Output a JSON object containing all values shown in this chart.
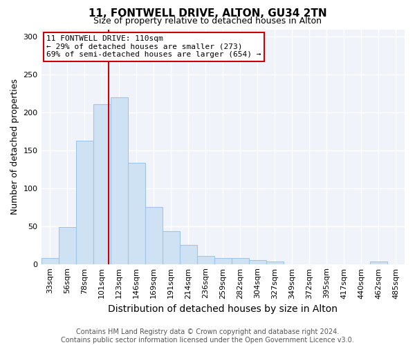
{
  "title1": "11, FONTWELL DRIVE, ALTON, GU34 2TN",
  "title2": "Size of property relative to detached houses in Alton",
  "xlabel": "Distribution of detached houses by size in Alton",
  "ylabel": "Number of detached properties",
  "footnote": "Contains HM Land Registry data © Crown copyright and database right 2024.\nContains public sector information licensed under the Open Government Licence v3.0.",
  "bar_color": "#cfe2f3",
  "bar_edge_color": "#9fc5e8",
  "background_color": "#ffffff",
  "plot_bg_color": "#f0f4fa",
  "grid_color": "#ffffff",
  "categories": [
    "33sqm",
    "56sqm",
    "78sqm",
    "101sqm",
    "123sqm",
    "146sqm",
    "169sqm",
    "191sqm",
    "214sqm",
    "236sqm",
    "259sqm",
    "282sqm",
    "304sqm",
    "327sqm",
    "349sqm",
    "372sqm",
    "395sqm",
    "417sqm",
    "440sqm",
    "462sqm",
    "485sqm"
  ],
  "values": [
    8,
    49,
    163,
    211,
    220,
    134,
    75,
    43,
    25,
    11,
    8,
    8,
    5,
    3,
    0,
    0,
    0,
    0,
    0,
    3,
    0
  ],
  "property_line_color": "#cc0000",
  "property_line_x": 3.41,
  "annotation_text": "11 FONTWELL DRIVE: 110sqm\n← 29% of detached houses are smaller (273)\n69% of semi-detached houses are larger (654) →",
  "annotation_box_color": "#ffffff",
  "annotation_border_color": "#cc0000",
  "ylim": [
    0,
    310
  ],
  "bar_width": 1.0,
  "title1_fontsize": 11,
  "title2_fontsize": 9,
  "xlabel_fontsize": 10,
  "ylabel_fontsize": 9,
  "tick_fontsize": 8,
  "annotation_fontsize": 8,
  "footnote_fontsize": 7
}
